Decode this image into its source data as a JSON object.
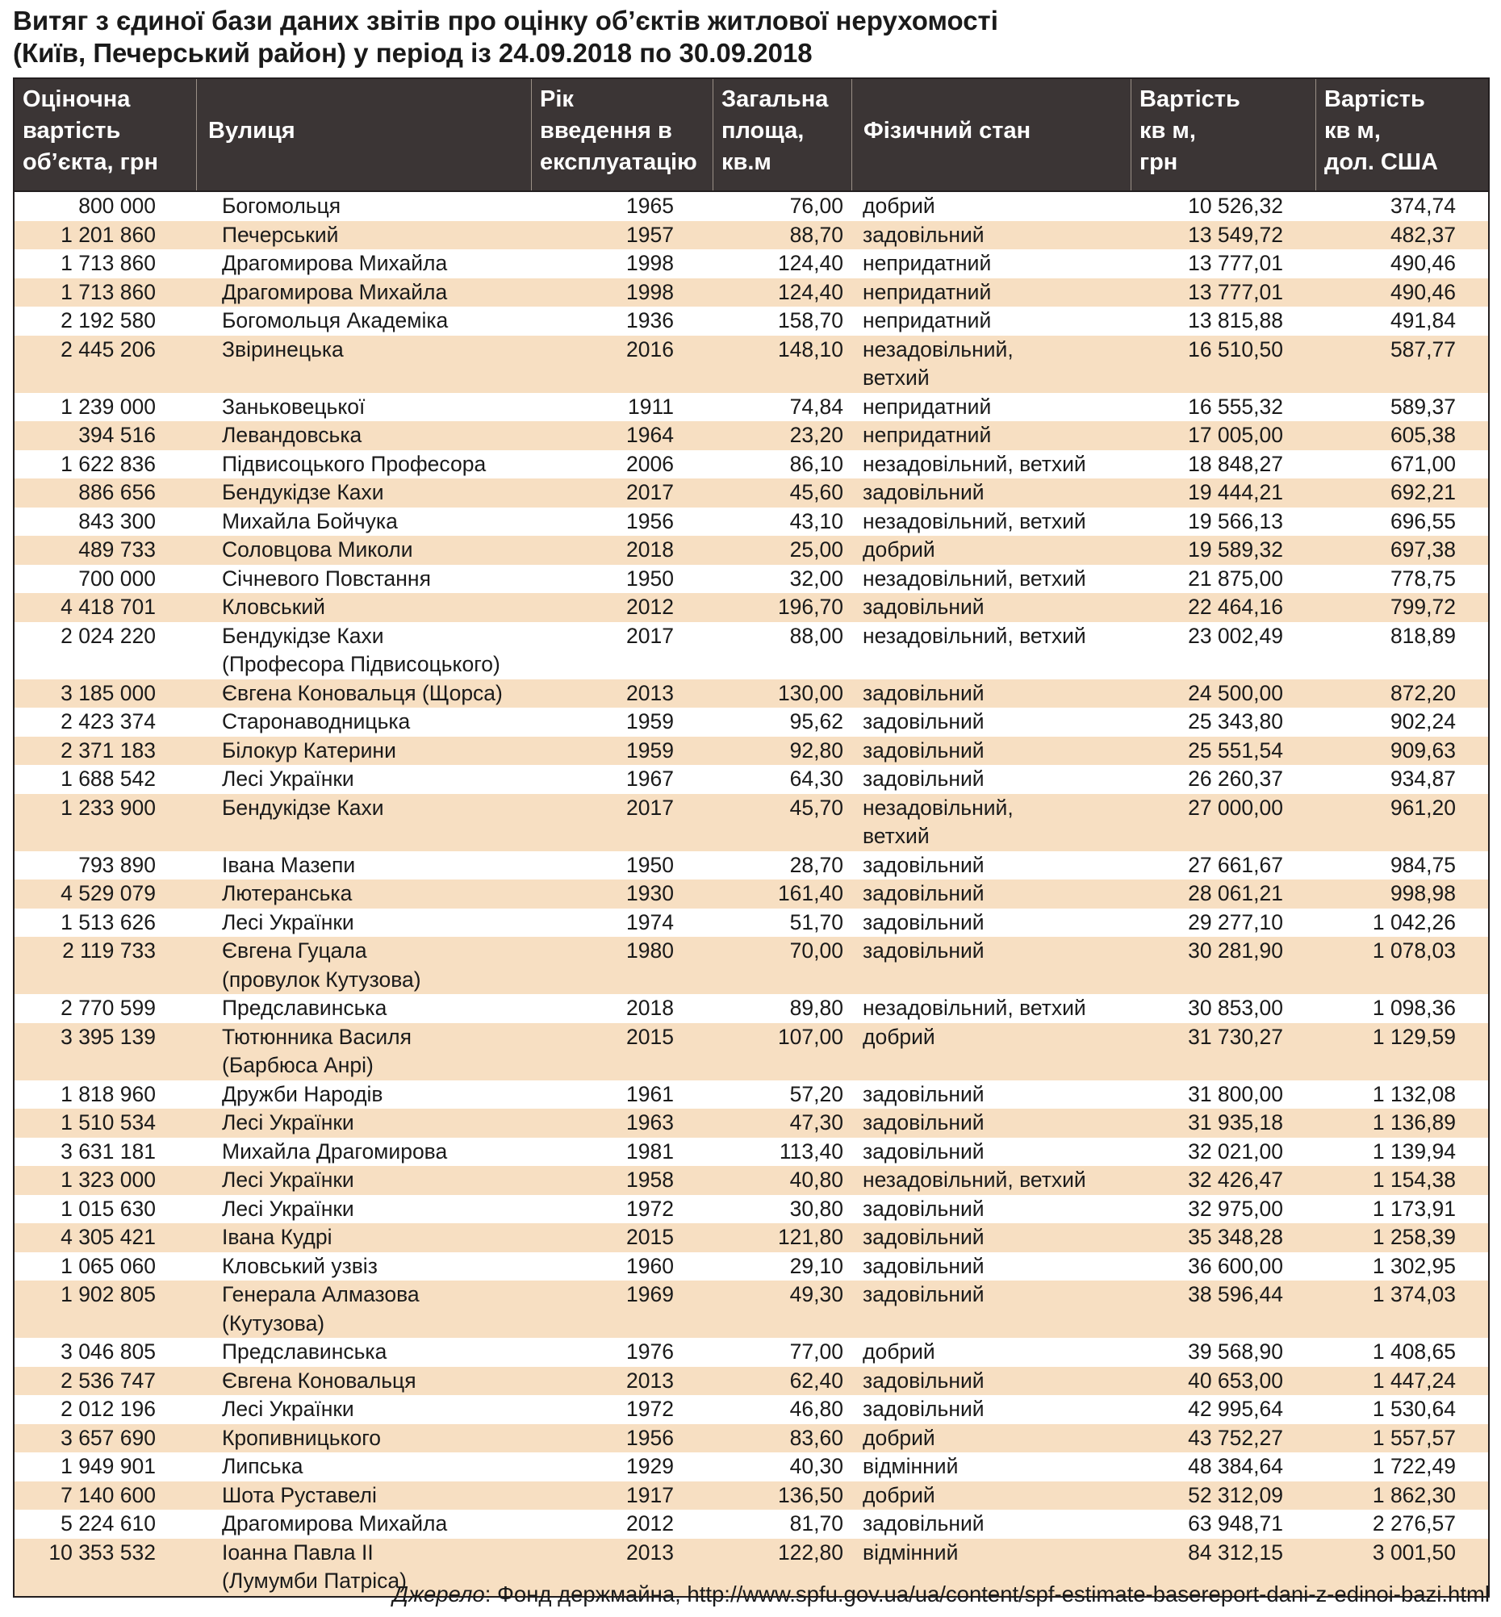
{
  "title": {
    "line1": "Витяг з єдиної бази даних звітів про оцінку об’єктів житлової нерухомості",
    "line2": "(Київ, Печерський район) у період із 24.09.2018 по 30.09.2018"
  },
  "headers": [
    [
      "Оціночна",
      "вартість",
      "об’єкта, грн"
    ],
    [
      "Вулиця"
    ],
    [
      "Рік",
      "введення в",
      "експлуатацію"
    ],
    [
      "Загальна",
      "площа,",
      "кв.м"
    ],
    [
      "Фізичний стан"
    ],
    [
      "Вартість",
      "кв м,",
      "грн"
    ],
    [
      "Вартість",
      "кв м,",
      "дол. США"
    ]
  ],
  "rows": [
    {
      "value": "800 000",
      "street": [
        "Богомольця"
      ],
      "year": "1965",
      "area": "76,00",
      "cond": [
        "добрий"
      ],
      "uah": "10 526,32",
      "usd": "374,74"
    },
    {
      "value": "1 201 860",
      "street": [
        "Печерський"
      ],
      "year": "1957",
      "area": "88,70",
      "cond": [
        "задовільний"
      ],
      "uah": "13 549,72",
      "usd": "482,37"
    },
    {
      "value": "1 713 860",
      "street": [
        "Драгомирова Михайла"
      ],
      "year": "1998",
      "area": "124,40",
      "cond": [
        "непридатний"
      ],
      "uah": "13 777,01",
      "usd": "490,46"
    },
    {
      "value": "1 713 860",
      "street": [
        "Драгомирова Михайла"
      ],
      "year": "1998",
      "area": "124,40",
      "cond": [
        "непридатний"
      ],
      "uah": "13 777,01",
      "usd": "490,46"
    },
    {
      "value": "2 192 580",
      "street": [
        "Богомольця Академіка"
      ],
      "year": "1936",
      "area": "158,70",
      "cond": [
        "непридатний"
      ],
      "uah": "13 815,88",
      "usd": "491,84"
    },
    {
      "value": "2 445 206",
      "street": [
        "Звіринецька"
      ],
      "year": "2016",
      "area": "148,10",
      "cond": [
        "незадовільний,",
        "ветхий"
      ],
      "uah": "16 510,50",
      "usd": "587,77"
    },
    {
      "value": "1 239 000",
      "street": [
        "Заньковецької"
      ],
      "year": "1911",
      "area": "74,84",
      "cond": [
        "непридатний"
      ],
      "uah": "16 555,32",
      "usd": "589,37"
    },
    {
      "value": "394 516",
      "street": [
        "Левандовська"
      ],
      "year": "1964",
      "area": "23,20",
      "cond": [
        "непридатний"
      ],
      "uah": "17 005,00",
      "usd": "605,38"
    },
    {
      "value": "1 622 836",
      "street": [
        "Підвисоцького Професора"
      ],
      "year": "2006",
      "area": "86,10",
      "cond": [
        "незадовільний, ветхий"
      ],
      "uah": "18 848,27",
      "usd": "671,00"
    },
    {
      "value": "886 656",
      "street": [
        "Бендукідзе Кахи"
      ],
      "year": "2017",
      "area": "45,60",
      "cond": [
        "задовільний"
      ],
      "uah": "19 444,21",
      "usd": "692,21"
    },
    {
      "value": "843 300",
      "street": [
        "Михайла Бойчука"
      ],
      "year": "1956",
      "area": "43,10",
      "cond": [
        "незадовільний, ветхий"
      ],
      "uah": "19 566,13",
      "usd": "696,55"
    },
    {
      "value": "489 733",
      "street": [
        "Соловцова Миколи"
      ],
      "year": "2018",
      "area": "25,00",
      "cond": [
        "добрий"
      ],
      "uah": "19 589,32",
      "usd": "697,38"
    },
    {
      "value": "700 000",
      "street": [
        "Січневого Повстання"
      ],
      "year": "1950",
      "area": "32,00",
      "cond": [
        "незадовільний, ветхий"
      ],
      "uah": "21 875,00",
      "usd": "778,75"
    },
    {
      "value": "4 418 701",
      "street": [
        "Кловський"
      ],
      "year": "2012",
      "area": "196,70",
      "cond": [
        "задовільний"
      ],
      "uah": "22 464,16",
      "usd": "799,72"
    },
    {
      "value": "2 024 220",
      "street": [
        "Бендукідзе Кахи",
        "(Професора Підвисоцького)"
      ],
      "year": "2017",
      "area": "88,00",
      "cond": [
        "незадовільний, ветхий"
      ],
      "uah": "23 002,49",
      "usd": "818,89"
    },
    {
      "value": "3 185 000",
      "street": [
        "Євгена Коновальця (Щорса)"
      ],
      "year": "2013",
      "area": "130,00",
      "cond": [
        "задовільний"
      ],
      "uah": "24 500,00",
      "usd": "872,20"
    },
    {
      "value": "2 423 374",
      "street": [
        "Старонаводницька"
      ],
      "year": "1959",
      "area": "95,62",
      "cond": [
        "задовільний"
      ],
      "uah": "25 343,80",
      "usd": "902,24"
    },
    {
      "value": "2 371 183",
      "street": [
        "Білокур Катерини"
      ],
      "year": "1959",
      "area": "92,80",
      "cond": [
        "задовільний"
      ],
      "uah": "25 551,54",
      "usd": "909,63"
    },
    {
      "value": "1 688 542",
      "street": [
        "Лесі Українки"
      ],
      "year": "1967",
      "area": "64,30",
      "cond": [
        "задовільний"
      ],
      "uah": "26 260,37",
      "usd": "934,87"
    },
    {
      "value": "1 233 900",
      "street": [
        "Бендукідзе Кахи"
      ],
      "year": "2017",
      "area": "45,70",
      "cond": [
        "незадовільний,",
        "ветхий"
      ],
      "uah": "27 000,00",
      "usd": "961,20"
    },
    {
      "value": "793 890",
      "street": [
        "Івана Мазепи"
      ],
      "year": "1950",
      "area": "28,70",
      "cond": [
        "задовільний"
      ],
      "uah": "27 661,67",
      "usd": "984,75"
    },
    {
      "value": "4 529 079",
      "street": [
        "Лютеранська"
      ],
      "year": "1930",
      "area": "161,40",
      "cond": [
        "задовільний"
      ],
      "uah": "28 061,21",
      "usd": "998,98"
    },
    {
      "value": "1 513 626",
      "street": [
        "Лесі Українки"
      ],
      "year": "1974",
      "area": "51,70",
      "cond": [
        "задовільний"
      ],
      "uah": "29 277,10",
      "usd": "1 042,26"
    },
    {
      "value": "2 119 733",
      "street": [
        "Євгена Гуцала",
        "(провулок Кутузова)"
      ],
      "year": "1980",
      "area": "70,00",
      "cond": [
        "задовільний"
      ],
      "uah": "30 281,90",
      "usd": "1 078,03"
    },
    {
      "value": "2 770 599",
      "street": [
        "Предславинська"
      ],
      "year": "2018",
      "area": "89,80",
      "cond": [
        "незадовільний, ветхий"
      ],
      "uah": "30 853,00",
      "usd": "1 098,36"
    },
    {
      "value": "3 395 139",
      "street": [
        "Тютюнника Василя",
        "(Барбюса Анрі)"
      ],
      "year": "2015",
      "area": "107,00",
      "cond": [
        "добрий"
      ],
      "uah": "31 730,27",
      "usd": "1 129,59"
    },
    {
      "value": "1 818 960",
      "street": [
        "Дружби Народів"
      ],
      "year": "1961",
      "area": "57,20",
      "cond": [
        "задовільний"
      ],
      "uah": "31 800,00",
      "usd": "1 132,08"
    },
    {
      "value": "1 510 534",
      "street": [
        "Лесі Українки"
      ],
      "year": "1963",
      "area": "47,30",
      "cond": [
        "задовільний"
      ],
      "uah": "31 935,18",
      "usd": "1 136,89"
    },
    {
      "value": "3 631 181",
      "street": [
        "Михайла Драгомирова"
      ],
      "year": "1981",
      "area": "113,40",
      "cond": [
        "задовільний"
      ],
      "uah": "32 021,00",
      "usd": "1 139,94"
    },
    {
      "value": "1 323 000",
      "street": [
        "Лесі Українки"
      ],
      "year": "1958",
      "area": "40,80",
      "cond": [
        "незадовільний, ветхий"
      ],
      "uah": "32 426,47",
      "usd": "1 154,38"
    },
    {
      "value": "1 015 630",
      "street": [
        "Лесі Українки"
      ],
      "year": "1972",
      "area": "30,80",
      "cond": [
        "задовільний"
      ],
      "uah": "32 975,00",
      "usd": "1 173,91"
    },
    {
      "value": "4 305 421",
      "street": [
        "Івана Кудрі"
      ],
      "year": "2015",
      "area": "121,80",
      "cond": [
        "задовільний"
      ],
      "uah": "35 348,28",
      "usd": "1 258,39"
    },
    {
      "value": "1 065 060",
      "street": [
        "Кловський узвіз"
      ],
      "year": "1960",
      "area": "29,10",
      "cond": [
        "задовільний"
      ],
      "uah": "36 600,00",
      "usd": "1 302,95"
    },
    {
      "value": "1 902 805",
      "street": [
        "Генерала Алмазова",
        "(Кутузова)"
      ],
      "year": "1969",
      "area": "49,30",
      "cond": [
        "задовільний"
      ],
      "uah": "38 596,44",
      "usd": "1 374,03"
    },
    {
      "value": "3 046 805",
      "street": [
        "Предславинська"
      ],
      "year": "1976",
      "area": "77,00",
      "cond": [
        "добрий"
      ],
      "uah": "39 568,90",
      "usd": "1 408,65"
    },
    {
      "value": "2 536 747",
      "street": [
        "Євгена Коновальця"
      ],
      "year": "2013",
      "area": "62,40",
      "cond": [
        "задовільний"
      ],
      "uah": "40 653,00",
      "usd": "1 447,24"
    },
    {
      "value": "2 012 196",
      "street": [
        "Лесі Українки"
      ],
      "year": "1972",
      "area": "46,80",
      "cond": [
        "задовільний"
      ],
      "uah": "42 995,64",
      "usd": "1 530,64"
    },
    {
      "value": "3 657 690",
      "street": [
        "Кропивницького"
      ],
      "year": "1956",
      "area": "83,60",
      "cond": [
        "добрий"
      ],
      "uah": "43 752,27",
      "usd": "1 557,57"
    },
    {
      "value": "1 949 901",
      "street": [
        "Липська"
      ],
      "year": "1929",
      "area": "40,30",
      "cond": [
        "відмінний"
      ],
      "uah": "48 384,64",
      "usd": "1 722,49"
    },
    {
      "value": "7 140 600",
      "street": [
        "Шота Руставелі"
      ],
      "year": "1917",
      "area": "136,50",
      "cond": [
        "добрий"
      ],
      "uah": "52 312,09",
      "usd": "1 862,30"
    },
    {
      "value": "5 224 610",
      "street": [
        "Драгомирова Михайла"
      ],
      "year": "2012",
      "area": "81,70",
      "cond": [
        "задовільний"
      ],
      "uah": "63 948,71",
      "usd": "2 276,57"
    },
    {
      "value": "10 353 532",
      "street": [
        "Іоанна Павла ІІ",
        "(Лумумби Патріса)"
      ],
      "year": "2013",
      "area": "122,80",
      "cond": [
        "відмінний"
      ],
      "uah": "84 312,15",
      "usd": "3 001,50"
    }
  ],
  "source": {
    "label": "Джерело",
    "text": ": Фонд держмайна, http://www.spfu.gov.ua/ua/content/spf-estimate-basereport-dani-z-edinoi-bazi.html"
  },
  "colors": {
    "header_bg": "#3b3535",
    "stripe_bg": "#f7dfc2",
    "text": "#1a1a1a"
  }
}
